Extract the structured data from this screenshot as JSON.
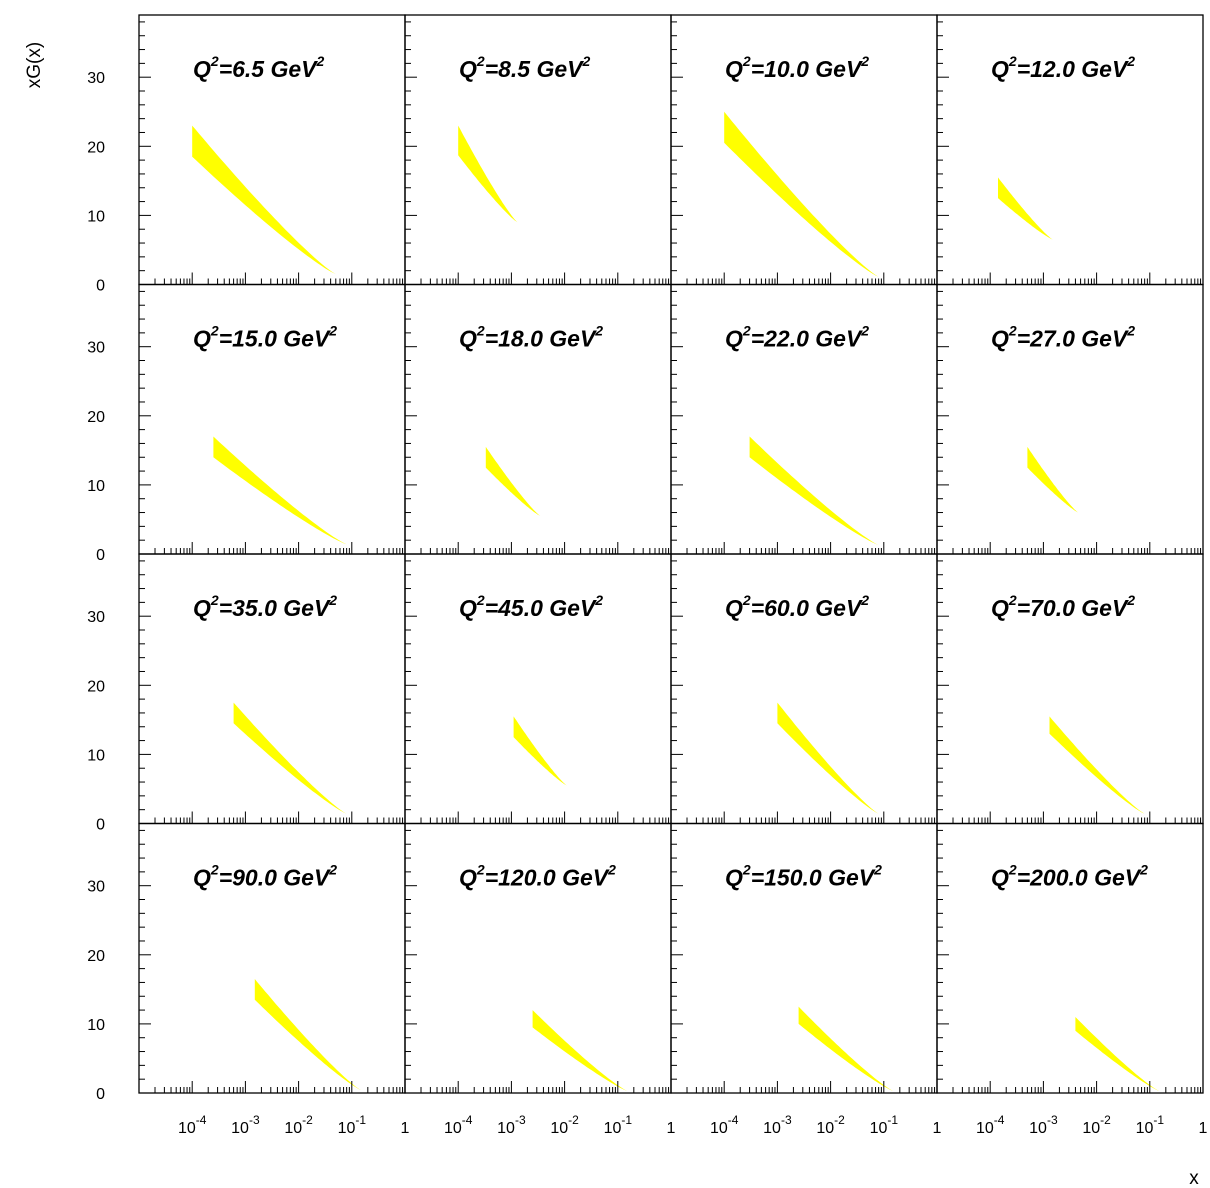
{
  "chart_data": {
    "type": "area",
    "layout": {
      "rows": 4,
      "cols": 4
    },
    "ylabel": "xG(x)",
    "xlabel": "x",
    "xscale": "log",
    "xlim": [
      1e-05,
      1
    ],
    "ylim": [
      0,
      39
    ],
    "y_ticks": [
      0,
      10,
      20,
      30
    ],
    "x_ticks": [
      {
        "base": "10",
        "exp": "-4",
        "value": 0.0001
      },
      {
        "base": "10",
        "exp": "-3",
        "value": 0.001
      },
      {
        "base": "10",
        "exp": "-2",
        "value": 0.01
      },
      {
        "base": "10",
        "exp": "-1",
        "value": 0.1
      },
      {
        "base": "1",
        "exp": "",
        "value": 1
      }
    ],
    "band_color": "#ffff00",
    "panels": [
      {
        "label_prefix": "Q",
        "label_exp": "2",
        "label_value": "=6.5 GeV",
        "label_unit_exp": "2",
        "x_min": 0.0001,
        "x_max": 0.05,
        "upper_at_xmin": 23.0,
        "lower_at_xmin": 18.5,
        "value_at_xmax": 1.5
      },
      {
        "label_prefix": "Q",
        "label_exp": "2",
        "label_value": "=8.5 GeV",
        "label_unit_exp": "2",
        "x_min": 0.0001,
        "x_max": 0.0013,
        "upper_at_xmin": 23.0,
        "lower_at_xmin": 18.7,
        "value_at_xmax": 9.0
      },
      {
        "label_prefix": "Q",
        "label_exp": "2",
        "label_value": "=10.0 GeV",
        "label_unit_exp": "2",
        "x_min": 0.0001,
        "x_max": 0.08,
        "upper_at_xmin": 25.0,
        "lower_at_xmin": 20.5,
        "value_at_xmax": 1.1
      },
      {
        "label_prefix": "Q",
        "label_exp": "2",
        "label_value": "=12.0 GeV",
        "label_unit_exp": "2",
        "x_min": 0.00014,
        "x_max": 0.0015,
        "upper_at_xmin": 15.5,
        "lower_at_xmin": 12.5,
        "value_at_xmax": 6.5
      },
      {
        "label_prefix": "Q",
        "label_exp": "2",
        "label_value": "=15.0 GeV",
        "label_unit_exp": "2",
        "x_min": 0.00025,
        "x_max": 0.08,
        "upper_at_xmin": 17.0,
        "lower_at_xmin": 14.0,
        "value_at_xmax": 1.4
      },
      {
        "label_prefix": "Q",
        "label_exp": "2",
        "label_value": "=18.0 GeV",
        "label_unit_exp": "2",
        "x_min": 0.00033,
        "x_max": 0.0035,
        "upper_at_xmin": 15.5,
        "lower_at_xmin": 12.5,
        "value_at_xmax": 5.5
      },
      {
        "label_prefix": "Q",
        "label_exp": "2",
        "label_value": "=22.0 GeV",
        "label_unit_exp": "2",
        "x_min": 0.0003,
        "x_max": 0.08,
        "upper_at_xmin": 17.0,
        "lower_at_xmin": 14.0,
        "value_at_xmax": 1.3
      },
      {
        "label_prefix": "Q",
        "label_exp": "2",
        "label_value": "=27.0 GeV",
        "label_unit_exp": "2",
        "x_min": 0.0005,
        "x_max": 0.0045,
        "upper_at_xmin": 15.5,
        "lower_at_xmin": 12.5,
        "value_at_xmax": 6.0
      },
      {
        "label_prefix": "Q",
        "label_exp": "2",
        "label_value": "=35.0 GeV",
        "label_unit_exp": "2",
        "x_min": 0.0006,
        "x_max": 0.08,
        "upper_at_xmin": 17.5,
        "lower_at_xmin": 14.5,
        "value_at_xmax": 1.4
      },
      {
        "label_prefix": "Q",
        "label_exp": "2",
        "label_value": "=45.0 GeV",
        "label_unit_exp": "2",
        "x_min": 0.0011,
        "x_max": 0.011,
        "upper_at_xmin": 15.5,
        "lower_at_xmin": 12.5,
        "value_at_xmax": 5.5
      },
      {
        "label_prefix": "Q",
        "label_exp": "2",
        "label_value": "=60.0 GeV",
        "label_unit_exp": "2",
        "x_min": 0.001,
        "x_max": 0.08,
        "upper_at_xmin": 17.5,
        "lower_at_xmin": 14.5,
        "value_at_xmax": 1.4
      },
      {
        "label_prefix": "Q",
        "label_exp": "2",
        "label_value": "=70.0 GeV",
        "label_unit_exp": "2",
        "x_min": 0.0013,
        "x_max": 0.08,
        "upper_at_xmin": 15.5,
        "lower_at_xmin": 13.0,
        "value_at_xmax": 1.4
      },
      {
        "label_prefix": "Q",
        "label_exp": "2",
        "label_value": "=90.0 GeV",
        "label_unit_exp": "2",
        "x_min": 0.0015,
        "x_max": 0.15,
        "upper_at_xmin": 16.5,
        "lower_at_xmin": 13.5,
        "value_at_xmax": 0.4
      },
      {
        "label_prefix": "Q",
        "label_exp": "2",
        "label_value": "=120.0 GeV",
        "label_unit_exp": "2",
        "x_min": 0.0025,
        "x_max": 0.15,
        "upper_at_xmin": 12.0,
        "lower_at_xmin": 9.5,
        "value_at_xmax": 0.3
      },
      {
        "label_prefix": "Q",
        "label_exp": "2",
        "label_value": "=150.0 GeV",
        "label_unit_exp": "2",
        "x_min": 0.0025,
        "x_max": 0.15,
        "upper_at_xmin": 12.5,
        "lower_at_xmin": 10.0,
        "value_at_xmax": 0.3
      },
      {
        "label_prefix": "Q",
        "label_exp": "2",
        "label_value": "=200.0 GeV",
        "label_unit_exp": "2",
        "x_min": 0.004,
        "x_max": 0.15,
        "upper_at_xmin": 11.0,
        "lower_at_xmin": 9.0,
        "value_at_xmax": 0.3
      }
    ]
  }
}
